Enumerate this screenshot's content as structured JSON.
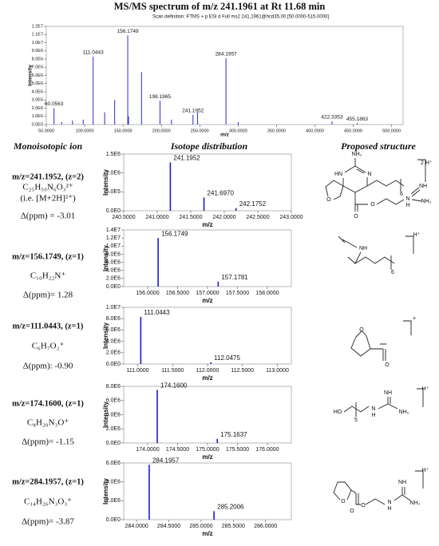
{
  "title": "MS/MS spectrum of m/z 241.1961 at Rt 11.68 min",
  "columns": [
    "Monoisotopic ion",
    "Isotope distribution",
    "Proposed structure"
  ],
  "rows": [
    {
      "ion": "m/z=241.1952, (z=2)",
      "formula": "C₂₅H₅₀N₆O₃²⁺",
      "note": "(i.e. [M+2H]²⁺)",
      "ppm": "Δ(ppm) = -3.01",
      "structure_labels": [
        "NH₂",
        "HN",
        "N",
        "O",
        "O",
        "O",
        "N",
        "H",
        "NH",
        "NH₂",
        "6",
        "2 H⁺"
      ]
    },
    {
      "ion": "m/z=156.1749, (z=1)",
      "formula": "C₁₀H₂₂N⁺",
      "ppm": "Δ(ppm)= 1.28",
      "structure_labels": [
        "NH",
        "6",
        "H⁺"
      ]
    },
    {
      "ion": "m/z=111.0443, (z=1)",
      "formula": "C₆H₇O₂⁺",
      "ppm": "Δ(ppm): -0.90",
      "structure_labels": [
        "O",
        "O",
        "+"
      ]
    },
    {
      "ion": "m/z=174.1600, (z=1)",
      "formula": "C₈H₂₀N₃O⁺",
      "ppm": "Δ(ppm)= -1.15",
      "structure_labels": [
        "HO",
        "5",
        "N",
        "H",
        "NH",
        "NH₂",
        "H⁺"
      ]
    },
    {
      "ion": "m/z=284.1957, (z=1)",
      "formula": "C₁₄H₂₆N₃O₃⁺",
      "ppm": "Δ(ppm)= -3.87",
      "structure_labels": [
        "O",
        "O",
        "O",
        "N",
        "H",
        "NH",
        "NH₂",
        "H⁺"
      ]
    }
  ],
  "chart_data": [
    {
      "type": "spectrum",
      "subtitle": "Scan definition: FTMS + p ESI d Full ms2 241.1961@hcd35.00 [50.0000-515.0000]",
      "x_label": "m/z",
      "y_label": "Intensity",
      "color": "#2a2ad8",
      "x": [
        60.0563,
        70.07,
        84.08,
        98.1,
        111.0443,
        126.1,
        139.1,
        156.1749,
        157.18,
        174.16,
        198.1965,
        213.2,
        241.1952,
        247.2,
        284.1957,
        300.2,
        422.3353,
        455.1863
      ],
      "values": [
        2000000,
        300000,
        500000,
        600000,
        8300000,
        1500000,
        3000000,
        10900000,
        1000000,
        6400000,
        2900000,
        600000,
        1200000,
        1500000,
        8100000,
        300000,
        400000,
        150000
      ],
      "peak_labels": [
        "60.0563",
        null,
        null,
        null,
        "111.0443",
        null,
        null,
        "156.1749",
        null,
        null,
        "198.1965",
        null,
        "241.1952",
        null,
        "284.1957",
        null,
        "422.3353",
        "455.1863"
      ],
      "xlim": [
        50,
        515
      ],
      "xticks": [
        {
          "value": 50,
          "label": "50.0000"
        },
        {
          "value": 100,
          "label": "100.0000"
        },
        {
          "value": 150,
          "label": "150.0000"
        },
        {
          "value": 200,
          "label": "200.0000"
        },
        {
          "value": 250,
          "label": "250.0000"
        },
        {
          "value": 300,
          "label": "300.0000"
        },
        {
          "value": 350,
          "label": "350.0000"
        },
        {
          "value": 400,
          "label": "400.0000"
        },
        {
          "value": 450,
          "label": "450.0000"
        },
        {
          "value": 500,
          "label": "500.0000"
        }
      ],
      "ylim": [
        0,
        12000000
      ],
      "yticks": [
        {
          "value": 0,
          "label": "0.0E0"
        },
        {
          "value": 1000000,
          "label": "1.0E6"
        },
        {
          "value": 2000000,
          "label": "2.0E6"
        },
        {
          "value": 3000000,
          "label": "3.0E6"
        },
        {
          "value": 4000000,
          "label": "4.0E6"
        },
        {
          "value": 5000000,
          "label": "5.0E6"
        },
        {
          "value": 6000000,
          "label": "6.0E6"
        },
        {
          "value": 7000000,
          "label": "7.0E6"
        },
        {
          "value": 8000000,
          "label": "8.0E6"
        },
        {
          "value": 9000000,
          "label": "9.0E6"
        },
        {
          "value": 10000000,
          "label": "1.0E7"
        },
        {
          "value": 11000000,
          "label": "1.1E7"
        },
        {
          "value": 12000000,
          "label": "1.2E7"
        }
      ]
    },
    {
      "type": "spectrum",
      "x_label": "m/z",
      "y_label": "Intensity",
      "color": "#1a1ad6",
      "x": [
        241.1952,
        241.697,
        242.1752
      ],
      "values": [
        1280000,
        350000,
        70000
      ],
      "peak_labels": [
        "241.1952",
        "241.6970",
        "242.1752"
      ],
      "xlim": [
        240.5,
        243.0
      ],
      "xticks": [
        {
          "value": 240.5,
          "label": "240.5000"
        },
        {
          "value": 241,
          "label": "241.0000"
        },
        {
          "value": 241.5,
          "label": "241.5000"
        },
        {
          "value": 242,
          "label": "242.0000"
        },
        {
          "value": 242.5,
          "label": "242.5000"
        },
        {
          "value": 243,
          "label": "243.0000"
        }
      ],
      "ylim": [
        0,
        1500000
      ],
      "yticks": [
        {
          "value": 0,
          "label": "0.0E0"
        },
        {
          "value": 500000,
          "label": "5.0E5"
        },
        {
          "value": 1000000,
          "label": "1.0E6"
        },
        {
          "value": 1500000,
          "label": "1.5E6"
        }
      ]
    },
    {
      "type": "spectrum",
      "x_label": "m/z",
      "y_label": "Intensity",
      "color": "#1a1ad6",
      "x": [
        156.1749,
        157.1781
      ],
      "values": [
        12000000,
        1200000
      ],
      "peak_labels": [
        "156.1749",
        "157.1781"
      ],
      "xlim": [
        155.6,
        158.4
      ],
      "xticks": [
        {
          "value": 156,
          "label": "156.0000"
        },
        {
          "value": 156.5,
          "label": "156.5000"
        },
        {
          "value": 157,
          "label": "157.0000"
        },
        {
          "value": 157.5,
          "label": "157.5000"
        },
        {
          "value": 158,
          "label": "158.0000"
        }
      ],
      "ylim": [
        0,
        14000000
      ],
      "yticks": [
        {
          "value": 0,
          "label": "0.0E0"
        },
        {
          "value": 2000000,
          "label": "2.0E6"
        },
        {
          "value": 4000000,
          "label": "4.0E6"
        },
        {
          "value": 6000000,
          "label": "6.0E6"
        },
        {
          "value": 8000000,
          "label": "8.0E6"
        },
        {
          "value": 10000000,
          "label": "1.0E7"
        },
        {
          "value": 12000000,
          "label": "1.2E7"
        },
        {
          "value": 14000000,
          "label": "1.4E7"
        }
      ]
    },
    {
      "type": "spectrum",
      "x_label": "m/z",
      "y_label": "Intensity",
      "color": "#1a1ad6",
      "x": [
        111.0443,
        112.0475
      ],
      "values": [
        8300000,
        300000
      ],
      "peak_labels": [
        "111.0443",
        "112.0475"
      ],
      "xlim": [
        110.8,
        113.2
      ],
      "xticks": [
        {
          "value": 111,
          "label": "111.0000"
        },
        {
          "value": 111.5,
          "label": "111.5000"
        },
        {
          "value": 112,
          "label": "112.0000"
        },
        {
          "value": 112.5,
          "label": "112.5000"
        },
        {
          "value": 113,
          "label": "113.0000"
        }
      ],
      "ylim": [
        0,
        10000000
      ],
      "yticks": [
        {
          "value": 0,
          "label": "0.0E0"
        },
        {
          "value": 2000000,
          "label": "2.0E6"
        },
        {
          "value": 4000000,
          "label": "4.0E6"
        },
        {
          "value": 6000000,
          "label": "6.0E6"
        },
        {
          "value": 8000000,
          "label": "8.0E6"
        },
        {
          "value": 10000000,
          "label": "1.0E7"
        }
      ]
    },
    {
      "type": "spectrum",
      "x_label": "m/z",
      "y_label": "Intensity",
      "color": "#1a1ad6",
      "x": [
        174.16,
        175.1637
      ],
      "values": [
        7500000,
        600000
      ],
      "peak_labels": [
        "174.1600",
        "175.1637"
      ],
      "xlim": [
        173.6,
        176.4
      ],
      "xticks": [
        {
          "value": 174,
          "label": "174.0000"
        },
        {
          "value": 174.5,
          "label": "174.5000"
        },
        {
          "value": 175,
          "label": "175.0000"
        },
        {
          "value": 175.5,
          "label": "175.5000"
        },
        {
          "value": 176,
          "label": "176.0000"
        }
      ],
      "ylim": [
        0,
        8000000
      ],
      "yticks": [
        {
          "value": 0,
          "label": "0.0E0"
        },
        {
          "value": 2000000,
          "label": "2.0E6"
        },
        {
          "value": 4000000,
          "label": "4.0E6"
        },
        {
          "value": 6000000,
          "label": "6.0E6"
        },
        {
          "value": 8000000,
          "label": "8.0E6"
        }
      ]
    },
    {
      "type": "spectrum",
      "x_label": "m/z",
      "y_label": "Intensity",
      "color": "#1a1ad6",
      "x": [
        284.1957,
        285.2006
      ],
      "values": [
        5800000,
        900000
      ],
      "peak_labels": [
        "284.1957",
        "285.2006"
      ],
      "xlim": [
        283.8,
        286.4
      ],
      "xticks": [
        {
          "value": 284,
          "label": "284.0000"
        },
        {
          "value": 284.5,
          "label": "284.5000"
        },
        {
          "value": 285,
          "label": "285.0000"
        },
        {
          "value": 285.5,
          "label": "285.5000"
        },
        {
          "value": 286,
          "label": "286.0000"
        }
      ],
      "ylim": [
        0,
        6000000
      ],
      "yticks": [
        {
          "value": 0,
          "label": "0.0E0"
        },
        {
          "value": 2000000,
          "label": "2.0E6"
        },
        {
          "value": 4000000,
          "label": "4.0E6"
        },
        {
          "value": 6000000,
          "label": "6.0E6"
        }
      ]
    }
  ]
}
